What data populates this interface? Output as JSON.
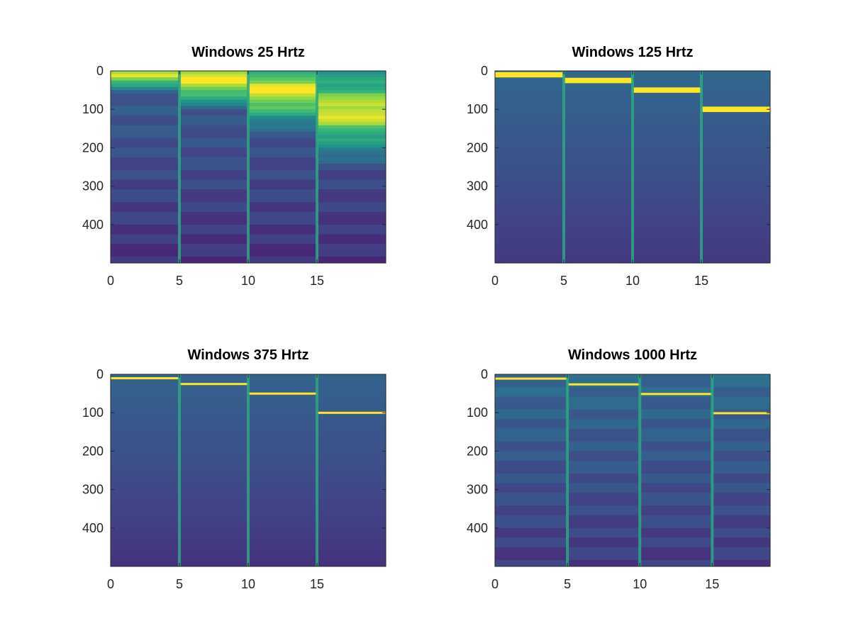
{
  "chart_data": [
    {
      "type": "heatmap",
      "title": "Windows 25 Hrtz",
      "xlabel": "",
      "ylabel": "",
      "xlim": [
        0,
        20
      ],
      "ylim": [
        0,
        500
      ],
      "y_reversed": true,
      "x_ticks": [
        0,
        5,
        10,
        15
      ],
      "y_ticks": [
        0,
        100,
        200,
        300,
        400
      ],
      "colormap": "viridis",
      "segment_width": 5,
      "ridge_freqs": [],
      "ridge_width": 0,
      "band_step": 28,
      "base_level": 0.38
    },
    {
      "type": "heatmap",
      "title": "Windows 125 Hrtz",
      "xlabel": "",
      "ylabel": "",
      "xlim": [
        0,
        20
      ],
      "ylim": [
        0,
        500
      ],
      "y_reversed": true,
      "x_ticks": [
        0,
        5,
        10,
        15
      ],
      "y_ticks": [
        0,
        100,
        200,
        300,
        400
      ],
      "colormap": "viridis",
      "segment_width": 5,
      "ridge_freqs": [
        10,
        25,
        50,
        100
      ],
      "ridge_width": 14,
      "band_step": 0,
      "base_level": 0.42
    },
    {
      "type": "heatmap",
      "title": "Windows 375 Hrtz",
      "xlabel": "",
      "ylabel": "",
      "xlim": [
        0,
        20
      ],
      "ylim": [
        0,
        500
      ],
      "y_reversed": true,
      "x_ticks": [
        0,
        5,
        10,
        15
      ],
      "y_ticks": [
        0,
        100,
        200,
        300,
        400
      ],
      "colormap": "viridis",
      "segment_width": 5,
      "ridge_freqs": [
        10,
        25,
        50,
        100
      ],
      "ridge_width": 5,
      "band_step": 0,
      "base_level": 0.4
    },
    {
      "type": "heatmap",
      "title": "Windows 1000 Hrtz",
      "xlabel": "",
      "ylabel": "",
      "xlim": [
        0,
        19
      ],
      "ylim": [
        0,
        500
      ],
      "y_reversed": true,
      "x_ticks": [
        0,
        5,
        10,
        15
      ],
      "y_ticks": [
        0,
        100,
        200,
        300,
        400
      ],
      "colormap": "viridis",
      "segment_width": 5,
      "ridge_freqs": [
        10,
        25,
        50,
        100
      ],
      "ridge_width": 3,
      "band_step": 28,
      "base_level": 0.42
    }
  ]
}
